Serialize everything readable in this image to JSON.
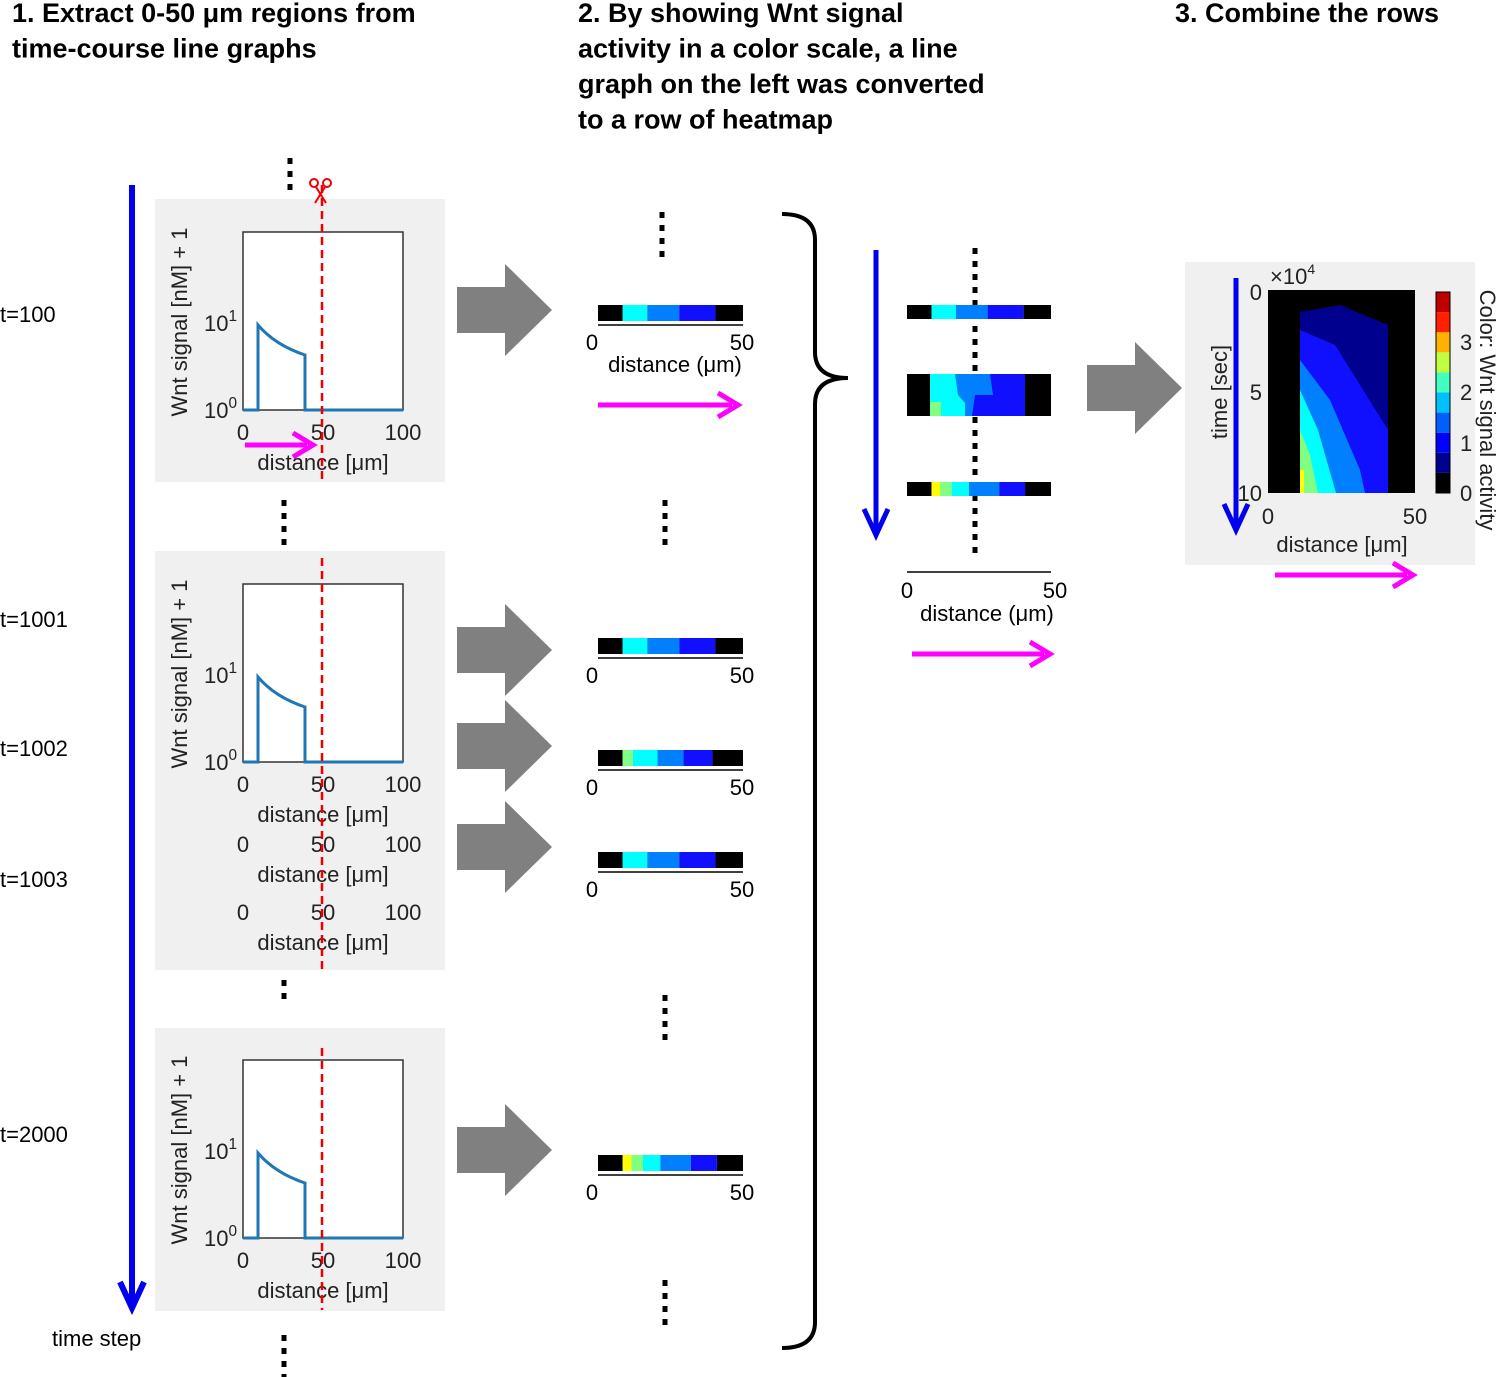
{
  "steps": [
    {
      "lines": [
        "1. Extract 0-50 μm regions from",
        "time-course line graphs"
      ]
    },
    {
      "lines": [
        "2. By showing Wnt signal",
        "activity in a color scale, a line",
        "graph on the left was converted",
        "to a row of heatmap"
      ]
    },
    {
      "lines": [
        "3. Combine the rows"
      ]
    }
  ],
  "time_labels": [
    "t=100",
    "t=1001",
    "t=1002",
    "t=1003",
    "t=2000"
  ],
  "time_axis_label": "time step",
  "line_graph": {
    "y_label": "Wnt signal [nM] + 1",
    "y_ticks": [
      {
        "base": "10",
        "exp": "0"
      },
      {
        "base": "10",
        "exp": "1"
      }
    ],
    "x_ticks": [
      "0",
      "50",
      "100"
    ],
    "x_label": "distance [μm]"
  },
  "heatmap_row": {
    "x_ticks": [
      "0",
      "50"
    ],
    "x_label": "distance (μm)"
  },
  "combined_heatmap": {
    "scale_base": "×10",
    "scale_exp": "4",
    "y_label": "time [sec]",
    "y_ticks": [
      "0",
      "5",
      "10"
    ],
    "x_ticks": [
      "0",
      "50"
    ],
    "x_label": "distance [μm]",
    "colorbar_ticks": [
      "0",
      "1",
      "2",
      "3"
    ],
    "colorbar_label": "Color: Wnt signal activity"
  }
}
